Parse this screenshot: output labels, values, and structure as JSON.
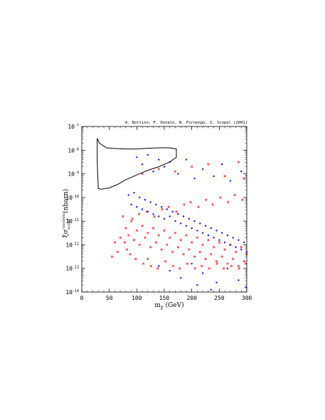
{
  "credit": "A. Bottino, F. Donato, N. Fornengo, S. Scopel (2001)",
  "chart_data": {
    "type": "scatter",
    "xlabel": "mχ (GeV)",
    "xlabel_base": "m",
    "xlabel_sub": "χ",
    "xlabel_unit": "(GeV)",
    "ylabel": "ξσ(nucleon) scalar (nbarn)",
    "ylabel_unit": "(nbarn)",
    "xlim": [
      0,
      300
    ],
    "ylim_log10": [
      -14,
      -7
    ],
    "y_scale": "log",
    "x_ticks": [
      "0",
      "50",
      "100",
      "150",
      "200",
      "250",
      "300"
    ],
    "x_tick_values": [
      0,
      50,
      100,
      150,
      200,
      250,
      300
    ],
    "y_tick_exponents": [
      -7,
      -8,
      -9,
      -10,
      -11,
      -12,
      -13,
      -14
    ],
    "y_tick_base": "10",
    "y_tick_labels": [
      "-7",
      "-8",
      "-9",
      "-10",
      "-11",
      "-12",
      "-13",
      "-14"
    ],
    "series": [
      {
        "marker": "cross",
        "color": "#ff2020",
        "points": [
          [
            80,
            -11.3
          ],
          [
            85,
            -11.6
          ],
          [
            90,
            -11.0
          ],
          [
            95,
            -11.8
          ],
          [
            100,
            -11.4
          ],
          [
            105,
            -12.0
          ],
          [
            110,
            -11.2
          ],
          [
            115,
            -11.7
          ],
          [
            120,
            -11.5
          ],
          [
            125,
            -12.1
          ],
          [
            130,
            -11.3
          ],
          [
            135,
            -11.9
          ],
          [
            140,
            -11.6
          ],
          [
            145,
            -12.2
          ],
          [
            150,
            -11.4
          ],
          [
            155,
            -12.0
          ],
          [
            160,
            -11.7
          ],
          [
            165,
            -12.3
          ],
          [
            170,
            -11.5
          ],
          [
            175,
            -12.1
          ],
          [
            180,
            -11.8
          ],
          [
            185,
            -12.4
          ],
          [
            190,
            -11.6
          ],
          [
            195,
            -12.2
          ],
          [
            200,
            -11.9
          ],
          [
            205,
            -12.5
          ],
          [
            210,
            -11.7
          ],
          [
            215,
            -12.3
          ],
          [
            220,
            -12.0
          ],
          [
            225,
            -12.6
          ],
          [
            230,
            -11.8
          ],
          [
            235,
            -12.4
          ],
          [
            240,
            -12.1
          ],
          [
            245,
            -12.7
          ],
          [
            250,
            -11.9
          ],
          [
            255,
            -12.5
          ],
          [
            260,
            -12.2
          ],
          [
            265,
            -12.8
          ],
          [
            270,
            -12.0
          ],
          [
            275,
            -12.6
          ],
          [
            280,
            -12.3
          ],
          [
            285,
            -12.9
          ],
          [
            290,
            -12.1
          ],
          [
            295,
            -12.7
          ],
          [
            300,
            -12.4
          ],
          [
            75,
            -10.8
          ],
          [
            78,
            -11.9
          ],
          [
            82,
            -12.2
          ],
          [
            88,
            -12.4
          ],
          [
            92,
            -10.9
          ],
          [
            98,
            -12.6
          ],
          [
            104,
            -10.7
          ],
          [
            112,
            -12.8
          ],
          [
            118,
            -10.6
          ],
          [
            126,
            -12.9
          ],
          [
            132,
            -10.8
          ],
          [
            138,
            -13.0
          ],
          [
            146,
            -10.5
          ],
          [
            152,
            -12.7
          ],
          [
            158,
            -10.4
          ],
          [
            166,
            -12.9
          ],
          [
            172,
            -10.6
          ],
          [
            178,
            -13.0
          ],
          [
            186,
            -10.3
          ],
          [
            192,
            -12.8
          ],
          [
            198,
            -10.2
          ],
          [
            206,
            -13.0
          ],
          [
            212,
            -10.4
          ],
          [
            218,
            -12.9
          ],
          [
            226,
            -10.1
          ],
          [
            232,
            -13.0
          ],
          [
            238,
            -10.3
          ],
          [
            246,
            -12.8
          ],
          [
            252,
            -10.0
          ],
          [
            258,
            -13.0
          ],
          [
            266,
            -10.2
          ],
          [
            272,
            -12.9
          ],
          [
            278,
            -9.9
          ],
          [
            286,
            -13.0
          ],
          [
            292,
            -10.1
          ],
          [
            298,
            -12.8
          ],
          [
            110,
            -9.0
          ],
          [
            140,
            -8.8
          ],
          [
            170,
            -8.9
          ],
          [
            200,
            -8.7
          ],
          [
            230,
            -8.6
          ],
          [
            260,
            -9.1
          ],
          [
            285,
            -8.5
          ],
          [
            295,
            -9.2
          ],
          [
            60,
            -11.9
          ],
          [
            65,
            -12.3
          ],
          [
            70,
            -11.7
          ],
          [
            55,
            -12.5
          ]
        ]
      },
      {
        "marker": "dot",
        "color": "#1010ff",
        "points": [
          [
            85,
            -9.9
          ],
          [
            90,
            -10.3
          ],
          [
            95,
            -9.8
          ],
          [
            100,
            -10.4
          ],
          [
            105,
            -10.0
          ],
          [
            110,
            -10.5
          ],
          [
            115,
            -10.1
          ],
          [
            120,
            -10.6
          ],
          [
            125,
            -10.2
          ],
          [
            130,
            -10.7
          ],
          [
            135,
            -10.3
          ],
          [
            140,
            -10.8
          ],
          [
            145,
            -10.4
          ],
          [
            150,
            -10.9
          ],
          [
            155,
            -10.5
          ],
          [
            160,
            -10.8
          ],
          [
            165,
            -10.6
          ],
          [
            170,
            -11.0
          ],
          [
            175,
            -10.7
          ],
          [
            180,
            -11.1
          ],
          [
            185,
            -10.8
          ],
          [
            190,
            -11.2
          ],
          [
            195,
            -10.9
          ],
          [
            200,
            -11.3
          ],
          [
            205,
            -11.0
          ],
          [
            210,
            -11.4
          ],
          [
            215,
            -11.1
          ],
          [
            220,
            -11.5
          ],
          [
            225,
            -11.2
          ],
          [
            230,
            -11.6
          ],
          [
            235,
            -11.3
          ],
          [
            240,
            -11.7
          ],
          [
            245,
            -11.4
          ],
          [
            250,
            -11.8
          ],
          [
            255,
            -11.5
          ],
          [
            260,
            -11.9
          ],
          [
            265,
            -11.6
          ],
          [
            270,
            -12.0
          ],
          [
            275,
            -11.7
          ],
          [
            280,
            -12.1
          ],
          [
            285,
            -11.8
          ],
          [
            290,
            -12.2
          ],
          [
            295,
            -11.9
          ],
          [
            300,
            -12.3
          ],
          [
            100,
            -8.3
          ],
          [
            110,
            -8.6
          ],
          [
            120,
            -8.2
          ],
          [
            130,
            -8.9
          ],
          [
            140,
            -8.4
          ],
          [
            150,
            -8.7
          ],
          [
            160,
            -8.5
          ],
          [
            175,
            -9.0
          ],
          [
            190,
            -8.4
          ],
          [
            205,
            -9.2
          ],
          [
            220,
            -8.8
          ],
          [
            240,
            -9.1
          ],
          [
            255,
            -8.6
          ],
          [
            270,
            -9.3
          ],
          [
            290,
            -8.9
          ],
          [
            120,
            -12.6
          ],
          [
            140,
            -12.9
          ],
          [
            160,
            -13.1
          ],
          [
            180,
            -13.4
          ],
          [
            200,
            -12.8
          ],
          [
            220,
            -13.2
          ],
          [
            245,
            -13.6
          ],
          [
            265,
            -13.0
          ],
          [
            285,
            -13.5
          ],
          [
            298,
            -13.8
          ],
          [
            235,
            -13.9
          ],
          [
            210,
            -13.7
          ]
        ]
      }
    ],
    "region_outline": [
      [
        28,
        -7.5
      ],
      [
        32,
        -7.7
      ],
      [
        38,
        -7.8
      ],
      [
        45,
        -7.9
      ],
      [
        60,
        -7.93
      ],
      [
        80,
        -7.95
      ],
      [
        100,
        -7.95
      ],
      [
        120,
        -7.92
      ],
      [
        140,
        -7.9
      ],
      [
        160,
        -7.9
      ],
      [
        172,
        -7.95
      ],
      [
        172,
        -8.3
      ],
      [
        160,
        -8.5
      ],
      [
        140,
        -8.7
      ],
      [
        120,
        -8.85
      ],
      [
        100,
        -9.05
      ],
      [
        80,
        -9.25
      ],
      [
        65,
        -9.45
      ],
      [
        50,
        -9.6
      ],
      [
        35,
        -9.65
      ],
      [
        30,
        -9.62
      ],
      [
        28,
        -8.5
      ],
      [
        28,
        -7.5
      ]
    ]
  }
}
